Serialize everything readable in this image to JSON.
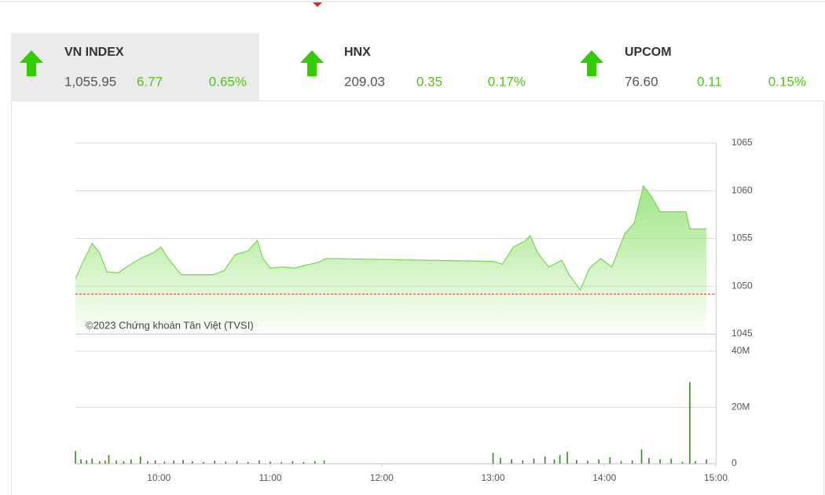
{
  "indices": [
    {
      "name": "VN INDEX",
      "value": "1,055.95",
      "change": "6.77",
      "percent": "0.65%"
    },
    {
      "name": "HNX",
      "value": "209.03",
      "change": "0.35",
      "percent": "0.17%"
    },
    {
      "name": "UPCOM",
      "value": "76.60",
      "change": "0.11",
      "percent": "0.15%"
    }
  ],
  "chart_data": [
    {
      "type": "line",
      "annotation": "©2023 Chứng khoán Tân Việt (TVSI)",
      "x": [
        555,
        559,
        564,
        568,
        572,
        578,
        584,
        591,
        597,
        601,
        605,
        612,
        620,
        629,
        635,
        641,
        648,
        653,
        656,
        660,
        667,
        673,
        679,
        686,
        690,
        780,
        785,
        791,
        797,
        800,
        804,
        810,
        817,
        821,
        827,
        832,
        838,
        844,
        851,
        856,
        861,
        865,
        870,
        884,
        886,
        895
      ],
      "values": [
        1050.8,
        1052.5,
        1054.5,
        1053.5,
        1051.5,
        1051.4,
        1052.2,
        1053.0,
        1053.5,
        1054.1,
        1052.9,
        1051.2,
        1051.2,
        1051.2,
        1051.6,
        1053.3,
        1053.7,
        1054.8,
        1052.9,
        1051.9,
        1052.0,
        1051.9,
        1052.2,
        1052.5,
        1052.9,
        1052.6,
        1052.3,
        1054.1,
        1054.7,
        1055.3,
        1053.5,
        1052.0,
        1052.7,
        1051.2,
        1049.6,
        1051.9,
        1052.9,
        1052.0,
        1055.5,
        1056.6,
        1060.5,
        1059.5,
        1057.8,
        1057.8,
        1056.0,
        1056.0
      ],
      "color": "#7ed957",
      "xlim": [
        555,
        900
      ],
      "ylim": [
        1045,
        1065
      ],
      "yticks": [
        1045,
        1050,
        1055,
        1060,
        1065
      ],
      "grid": true,
      "reference_line": 1049.18,
      "reference_color": "#d32f2f"
    },
    {
      "type": "bar",
      "x": [
        555,
        558,
        561,
        564,
        568,
        571,
        573,
        577,
        581,
        585,
        590,
        594,
        598,
        603,
        608,
        613,
        618,
        624,
        630,
        636,
        642,
        648,
        654,
        660,
        666,
        672,
        678,
        684,
        689,
        780,
        784,
        790,
        796,
        802,
        808,
        813,
        816,
        820,
        825,
        831,
        837,
        843,
        849,
        855,
        860,
        864,
        870,
        876,
        882,
        886,
        889,
        895
      ],
      "values": [
        4500000,
        1500000,
        1200000,
        1800000,
        900000,
        1000000,
        3000000,
        1100000,
        800000,
        1500000,
        2500000,
        900000,
        1200000,
        700000,
        1000000,
        1300000,
        800000,
        600000,
        1000000,
        700000,
        900000,
        600000,
        1200000,
        700000,
        500000,
        800000,
        600000,
        900000,
        1100000,
        3800000,
        2000000,
        1500000,
        1200000,
        1800000,
        2500000,
        1500000,
        3000000,
        4200000,
        1300000,
        1000000,
        1500000,
        2200000,
        900000,
        1100000,
        5000000,
        2000000,
        1500000,
        1800000,
        600000,
        29000000,
        800000,
        1500000
      ],
      "color": "#2e8b1e",
      "xlim": [
        555,
        900
      ],
      "ylim": [
        0,
        40000000
      ],
      "yticks": [
        0,
        {
          "value": 20000000,
          "label": "20M"
        },
        {
          "value": 40000000,
          "label": "40M"
        }
      ],
      "xticks": [
        {
          "value": 600,
          "label": "10:00"
        },
        {
          "value": 660,
          "label": "11:00"
        },
        {
          "value": 720,
          "label": "12:00"
        },
        {
          "value": 780,
          "label": "13:00"
        },
        {
          "value": 840,
          "label": "14:00"
        },
        {
          "value": 900,
          "label": "15:00"
        }
      ],
      "grid": true
    }
  ]
}
